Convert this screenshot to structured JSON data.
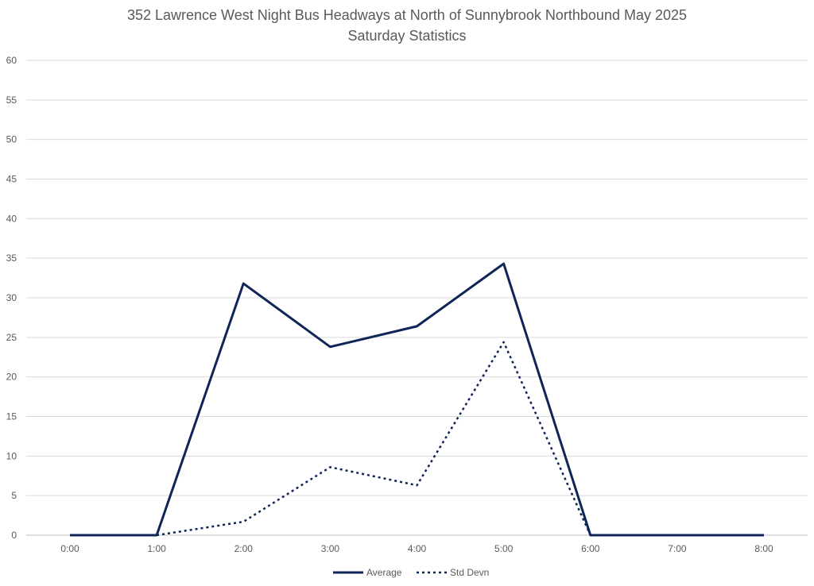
{
  "chart_data": {
    "type": "line",
    "title": "352 Lawrence West Night Bus Headways at North of Sunnybrook Northbound May 2025",
    "subtitle": "Saturday Statistics",
    "categories": [
      "0:00",
      "1:00",
      "2:00",
      "3:00",
      "4:00",
      "5:00",
      "6:00",
      "7:00",
      "8:00"
    ],
    "y_ticks": [
      0,
      5,
      10,
      15,
      20,
      25,
      30,
      35,
      40,
      45,
      50,
      55,
      60
    ],
    "ylim": [
      0,
      60
    ],
    "grid": true,
    "legend_position": "bottom",
    "series": [
      {
        "name": "Average",
        "style": "solid",
        "color": "#0f2557",
        "values": [
          0,
          0,
          31.8,
          23.8,
          26.4,
          34.3,
          0,
          0,
          0
        ]
      },
      {
        "name": "Std Devn",
        "style": "dotted",
        "color": "#0f2557",
        "values": [
          null,
          0,
          1.7,
          8.6,
          6.3,
          24.4,
          0,
          null,
          null
        ]
      }
    ]
  }
}
